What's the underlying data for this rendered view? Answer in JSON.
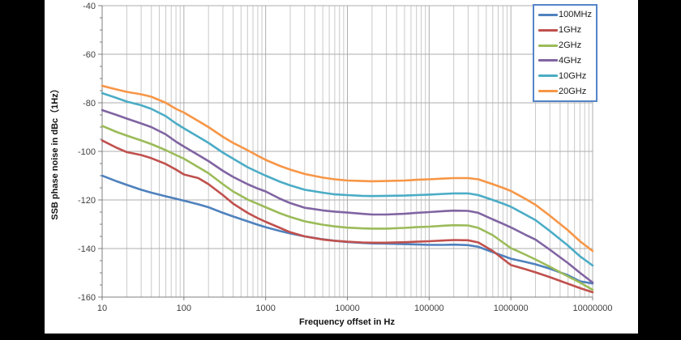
{
  "chart_data": {
    "type": "line",
    "title": "",
    "xlabel": "Frequency offset in Hz",
    "ylabel": "SSB phase noise in dBc（1Hz）",
    "x_scale": "log",
    "xlim": [
      10,
      10000000
    ],
    "ylim": [
      -160,
      -40
    ],
    "grid": true,
    "legend_position": "top-right",
    "x_ticks": [
      10,
      100,
      1000,
      10000,
      100000,
      1000000,
      10000000
    ],
    "x_tick_labels": [
      "10",
      "100",
      "1000",
      "10000",
      "100000",
      "1000000",
      "10000000"
    ],
    "y_ticks": [
      -40,
      -60,
      -80,
      -100,
      -120,
      -140,
      -160
    ],
    "y_minor_step": 5,
    "x": [
      10,
      15,
      20,
      30,
      40,
      60,
      80,
      100,
      150,
      200,
      300,
      400,
      600,
      800,
      1000,
      1500,
      2000,
      3000,
      5000,
      7000,
      10000,
      15000,
      20000,
      30000,
      50000,
      70000,
      100000,
      150000,
      200000,
      300000,
      400000,
      600000,
      800000,
      1000000,
      1500000,
      2000000,
      3000000,
      5000000,
      7000000,
      10000000
    ],
    "series": [
      {
        "name": "100MHz",
        "color": "#4F81BD",
        "values": [
          -110,
          -112.3,
          -113.8,
          -115.8,
          -117,
          -118.5,
          -119.5,
          -120.3,
          -121.8,
          -123,
          -125.3,
          -126.8,
          -128.8,
          -130.2,
          -131.2,
          -132.8,
          -133.8,
          -135,
          -136.2,
          -136.8,
          -137.3,
          -137.7,
          -137.9,
          -138,
          -138.2,
          -138.3,
          -138.5,
          -138.5,
          -138.4,
          -138.6,
          -139.3,
          -141.5,
          -143,
          -144.2,
          -145.5,
          -146.5,
          -148.3,
          -151,
          -153.5,
          -154.4
        ]
      },
      {
        "name": "1GHz",
        "color": "#C0504D",
        "values": [
          -95.5,
          -98.5,
          -100.3,
          -101.5,
          -102.8,
          -105.2,
          -107.5,
          -109.5,
          -111,
          -113.5,
          -118,
          -121.5,
          -125.3,
          -127.5,
          -129,
          -131.5,
          -133.3,
          -135,
          -136.3,
          -136.8,
          -137.2,
          -137.5,
          -137.6,
          -137.6,
          -137.4,
          -137.2,
          -137,
          -136.7,
          -136.5,
          -136.6,
          -137.5,
          -141,
          -144.3,
          -146.8,
          -148.5,
          -149.8,
          -151.8,
          -154.5,
          -156.3,
          -158
        ]
      },
      {
        "name": "2GHz",
        "color": "#9BBB59",
        "values": [
          -89.5,
          -92,
          -93.5,
          -95.5,
          -97,
          -99.5,
          -101.5,
          -103,
          -106.5,
          -109,
          -113.5,
          -116.5,
          -119.8,
          -121.6,
          -123,
          -125.5,
          -127,
          -128.8,
          -130.2,
          -130.9,
          -131.4,
          -131.7,
          -131.8,
          -131.8,
          -131.5,
          -131.2,
          -131,
          -130.6,
          -130.4,
          -130.5,
          -131.5,
          -134.5,
          -137.5,
          -139.8,
          -142.5,
          -144.5,
          -147.5,
          -151.5,
          -154,
          -157
        ]
      },
      {
        "name": "4GHz",
        "color": "#8064A2",
        "values": [
          -83,
          -85,
          -86.5,
          -88.5,
          -90,
          -93,
          -96,
          -98,
          -101.5,
          -104,
          -108,
          -110.5,
          -113.5,
          -115.3,
          -116.5,
          -119.5,
          -121.3,
          -123.2,
          -124.3,
          -124.8,
          -125.2,
          -125.7,
          -126,
          -126,
          -125.7,
          -125.3,
          -125,
          -124.6,
          -124.4,
          -124.5,
          -125.3,
          -128,
          -129.8,
          -131.3,
          -134.3,
          -136.3,
          -140.5,
          -146,
          -150,
          -154
        ]
      },
      {
        "name": "10GHz",
        "color": "#4BACC6",
        "values": [
          -76,
          -78,
          -79.5,
          -81,
          -82.5,
          -85.5,
          -88.5,
          -90.5,
          -94,
          -96.5,
          -100.5,
          -103,
          -106.5,
          -108.5,
          -110,
          -112.5,
          -114,
          -115.8,
          -117,
          -117.7,
          -118,
          -118.3,
          -118.4,
          -118.3,
          -118.2,
          -118,
          -117.8,
          -117.5,
          -117.3,
          -117.3,
          -118,
          -120,
          -121.5,
          -122.8,
          -126,
          -128.3,
          -132.8,
          -138.8,
          -143.2,
          -147
        ]
      },
      {
        "name": "20GHz",
        "color": "#F79646",
        "values": [
          -73,
          -74.5,
          -75.5,
          -76.5,
          -77.5,
          -80,
          -82.5,
          -84,
          -87.5,
          -90,
          -94,
          -96.5,
          -99.5,
          -101.8,
          -103.5,
          -106,
          -107.5,
          -109.3,
          -110.8,
          -111.5,
          -112,
          -112.2,
          -112.3,
          -112.2,
          -112,
          -111.7,
          -111.5,
          -111.2,
          -111,
          -111,
          -111.5,
          -113.5,
          -115,
          -116.3,
          -119.5,
          -122,
          -126.5,
          -132.5,
          -137,
          -141
        ]
      }
    ]
  },
  "style": {
    "plot_bg": "#ffffff",
    "page_bg": "#000000",
    "grid_major_color": "#ADADAD",
    "grid_minor_color": "#C9C9C9",
    "axis_color": "#7F7F7F",
    "tick_label_color": "#3F3F3F",
    "legend_border_color": "#5585C8"
  }
}
